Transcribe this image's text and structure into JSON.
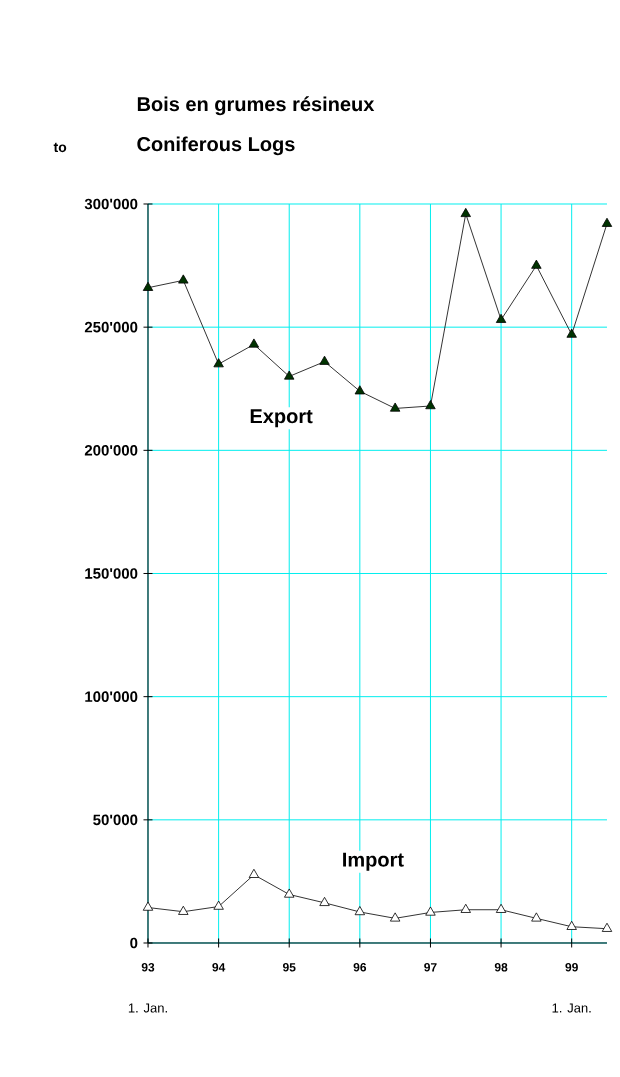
{
  "chart_data": {
    "type": "line",
    "title": "Bois en grumes résineux",
    "subtitle": "Coniferous Logs",
    "ylabel": "to",
    "x": [
      93,
      93.5,
      94,
      94.5,
      95,
      95.5,
      96,
      96.5,
      97,
      97.5,
      98,
      98.5,
      99,
      99.5
    ],
    "series": [
      {
        "name": "Export",
        "color": "#003300",
        "values": [
          266000,
          269000,
          235000,
          243000,
          230000,
          236000,
          224000,
          217000,
          218000,
          296000,
          253000,
          275000,
          247000,
          292000
        ]
      },
      {
        "name": "Import",
        "color": "#ffffff",
        "values": [
          14400,
          12700,
          14800,
          27700,
          19700,
          16300,
          12600,
          10000,
          12400,
          13500,
          13500,
          10000,
          6600,
          5800
        ]
      }
    ],
    "xlim": [
      93,
      99.5
    ],
    "xticks": [
      93,
      94,
      95,
      96,
      97,
      98,
      99
    ],
    "ylim": [
      0,
      300000
    ],
    "yticks": [
      {
        "value": 0,
        "label": "0"
      },
      {
        "value": 50000,
        "label": "50'000"
      },
      {
        "value": 100000,
        "label": "100'000"
      },
      {
        "value": 150000,
        "label": "150'000"
      },
      {
        "value": 200000,
        "label": "200'000"
      },
      {
        "value": 250000,
        "label": "250'000"
      },
      {
        "value": 300000,
        "label": "300'000"
      }
    ],
    "annotations": [
      "1. Jan.",
      "1. Jan."
    ],
    "grid": true,
    "legend": false,
    "marker": "triangle",
    "line_style": "solid"
  }
}
